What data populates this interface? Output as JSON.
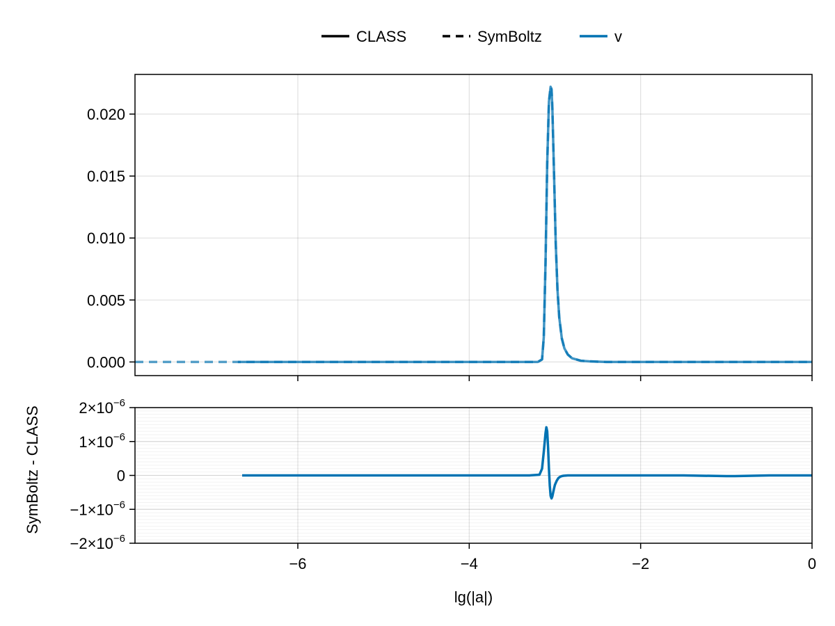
{
  "legend": {
    "items": [
      {
        "label": "CLASS",
        "style": "solid",
        "color": "#000000"
      },
      {
        "label": "SymBoltz",
        "style": "dashed",
        "color": "#000000"
      },
      {
        "label": "v",
        "style": "solid",
        "color": "#0072b2"
      }
    ]
  },
  "chart_data": [
    {
      "type": "line",
      "panel": "top",
      "xlim": [
        -7.9,
        0
      ],
      "ylim": [
        -0.0011,
        0.0232
      ],
      "xticks": [
        -6,
        -4,
        -2,
        0
      ],
      "yticks": [
        0.0,
        0.005,
        0.01,
        0.015,
        0.02
      ],
      "ytick_labels": [
        "0.000",
        "0.005",
        "0.010",
        "0.015",
        "0.020"
      ],
      "grid": true,
      "series": [
        {
          "name": "CLASS",
          "style": "solid",
          "color": "#0072b2",
          "x": [
            -6.7,
            -5.0,
            -4.0,
            -3.4,
            -3.2,
            -3.15,
            -3.13,
            -3.11,
            -3.09,
            -3.07,
            -3.05,
            -3.04,
            -3.03,
            -3.01,
            -2.99,
            -2.97,
            -2.95,
            -2.92,
            -2.89,
            -2.85,
            -2.8,
            -2.75,
            -2.7,
            -2.6,
            -2.4,
            -2.0,
            -1.5,
            -1.0,
            -0.5,
            0.0
          ],
          "y": [
            0.0,
            0.0,
            0.0,
            0.0,
            0.0,
            0.0002,
            0.002,
            0.008,
            0.016,
            0.021,
            0.0222,
            0.022,
            0.0205,
            0.015,
            0.0095,
            0.0058,
            0.0036,
            0.0019,
            0.0011,
            0.0006,
            0.0003,
            0.0002,
            0.0001,
            5e-05,
            0.0,
            0.0,
            0.0,
            0.0,
            0.0,
            0.0
          ]
        },
        {
          "name": "SymBoltz",
          "style": "dashed",
          "color": "#0072b2",
          "x": [
            -7.9,
            -6.7,
            -5.0,
            -4.0,
            -3.4,
            -3.2,
            -3.15,
            -3.13,
            -3.11,
            -3.09,
            -3.07,
            -3.05,
            -3.04,
            -3.03,
            -3.01,
            -2.99,
            -2.97,
            -2.95,
            -2.92,
            -2.89,
            -2.85,
            -2.8,
            -2.75,
            -2.7,
            -2.6,
            -2.4,
            -2.0,
            -1.5,
            -1.0,
            -0.5,
            0.0
          ],
          "y": [
            0.0,
            0.0,
            0.0,
            0.0,
            0.0,
            0.0,
            0.0002,
            0.002,
            0.008,
            0.016,
            0.021,
            0.0222,
            0.022,
            0.0205,
            0.015,
            0.0095,
            0.0058,
            0.0036,
            0.0019,
            0.0011,
            0.0006,
            0.0003,
            0.0002,
            0.0001,
            5e-05,
            0.0,
            0.0,
            0.0,
            0.0,
            0.0,
            0.0
          ]
        }
      ]
    },
    {
      "type": "line",
      "panel": "bottom",
      "xlabel": "lg(|a|)",
      "ylabel": "SymBoltz - CLASS",
      "xlim": [
        -7.9,
        0
      ],
      "ylim": [
        -2e-06,
        2e-06
      ],
      "xticks": [
        -6,
        -4,
        -2,
        0
      ],
      "xtick_labels": [
        "−6",
        "−4",
        "−2",
        "0"
      ],
      "yticks": [
        -2e-06,
        -1e-06,
        0,
        1e-06,
        2e-06
      ],
      "ytick_labels": [
        {
          "mantissa": "−2×10",
          "exp": "−6"
        },
        {
          "mantissa": "−1×10",
          "exp": "−6"
        },
        {
          "mantissa": "0",
          "exp": ""
        },
        {
          "mantissa": "1×10",
          "exp": "−6"
        },
        {
          "mantissa": "2×10",
          "exp": "−6"
        }
      ],
      "grid": true,
      "minor_grid": true,
      "series": [
        {
          "name": "v",
          "color": "#0072b2",
          "x": [
            -6.65,
            -5.0,
            -4.0,
            -3.3,
            -3.18,
            -3.15,
            -3.13,
            -3.11,
            -3.1,
            -3.09,
            -3.08,
            -3.07,
            -3.06,
            -3.05,
            -3.04,
            -3.03,
            -3.02,
            -3.01,
            -3.0,
            -2.98,
            -2.96,
            -2.94,
            -2.92,
            -2.9,
            -2.85,
            -2.8,
            -2.5,
            -1.5,
            -1.0,
            -0.9,
            -0.5,
            0.0
          ],
          "y": [
            0,
            0,
            0,
            0,
            2e-08,
            2e-07,
            7e-07,
            1.25e-06,
            1.42e-06,
            1.3e-06,
            8e-07,
            2e-07,
            -3e-07,
            -6e-07,
            -6.8e-07,
            -6.2e-07,
            -5e-07,
            -3.8e-07,
            -2.8e-07,
            -1.6e-07,
            -8e-08,
            -4e-08,
            -2e-08,
            -1e-08,
            0,
            0,
            0,
            0,
            -2e-08,
            -2e-08,
            0,
            0
          ]
        }
      ]
    }
  ]
}
